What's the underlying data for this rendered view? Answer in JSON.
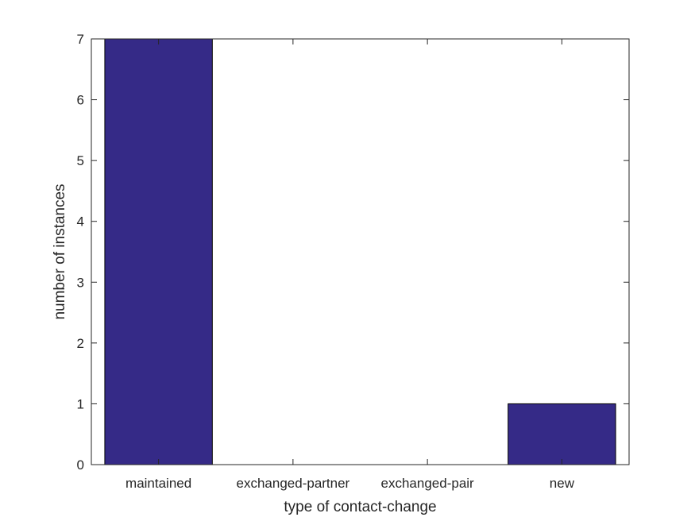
{
  "chart_data": {
    "type": "bar",
    "title": "",
    "xlabel": "type of contact-change",
    "ylabel": "number of instances",
    "categories": [
      "maintained",
      "exchanged-partner",
      "exchanged-pair",
      "new"
    ],
    "values": [
      7,
      0,
      0,
      1
    ],
    "ylim": [
      0,
      7
    ],
    "yticks": [
      0,
      1,
      2,
      3,
      4,
      5,
      6,
      7
    ],
    "grid": false,
    "bar_color": "#352a87"
  }
}
